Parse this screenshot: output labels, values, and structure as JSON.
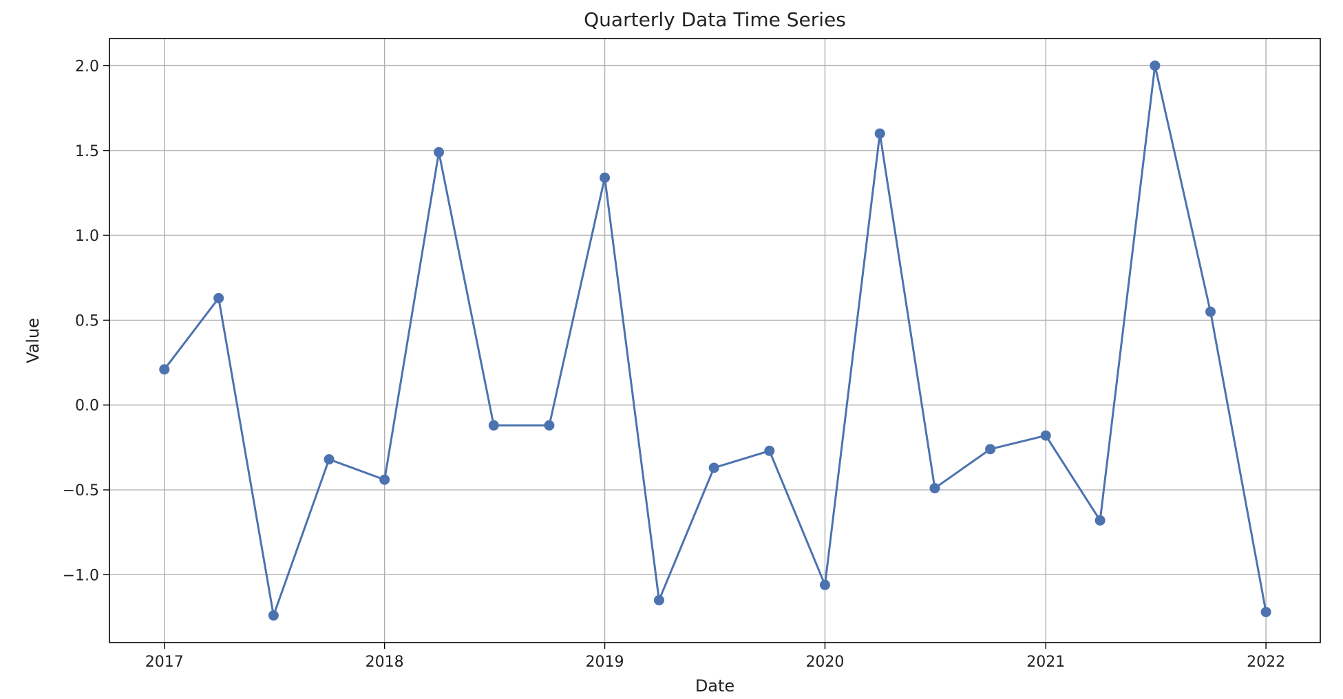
{
  "chart_data": {
    "type": "line",
    "title": "Quarterly Data Time Series",
    "xlabel": "Date",
    "ylabel": "Value",
    "x_ticks": [
      "2017",
      "2018",
      "2019",
      "2020",
      "2021",
      "2022"
    ],
    "y_ticks": [
      "−1.0",
      "−0.5",
      "0.0",
      "0.5",
      "1.0",
      "1.5",
      "2.0"
    ],
    "ylim": [
      -1.4,
      2.16
    ],
    "xlim": [
      "2016-10-02",
      "2022-04-01"
    ],
    "grid": true,
    "series": [
      {
        "color": "#4c72b0",
        "marker": "circle",
        "x": [
          "2017-01-01",
          "2017-04-01",
          "2017-07-01",
          "2017-10-01",
          "2018-01-01",
          "2018-04-01",
          "2018-07-01",
          "2018-10-01",
          "2019-01-01",
          "2019-04-01",
          "2019-07-01",
          "2019-10-01",
          "2020-01-01",
          "2020-04-01",
          "2020-07-01",
          "2020-10-01",
          "2021-01-01",
          "2021-04-01",
          "2021-07-01",
          "2021-10-01",
          "2022-01-01"
        ],
        "values": [
          0.21,
          0.63,
          -1.24,
          -0.32,
          -0.44,
          1.49,
          -0.12,
          -0.12,
          1.34,
          -1.15,
          -0.37,
          -0.27,
          -1.06,
          1.6,
          -0.49,
          -0.26,
          -0.18,
          -0.68,
          2.0,
          0.55,
          -1.22
        ]
      }
    ]
  }
}
